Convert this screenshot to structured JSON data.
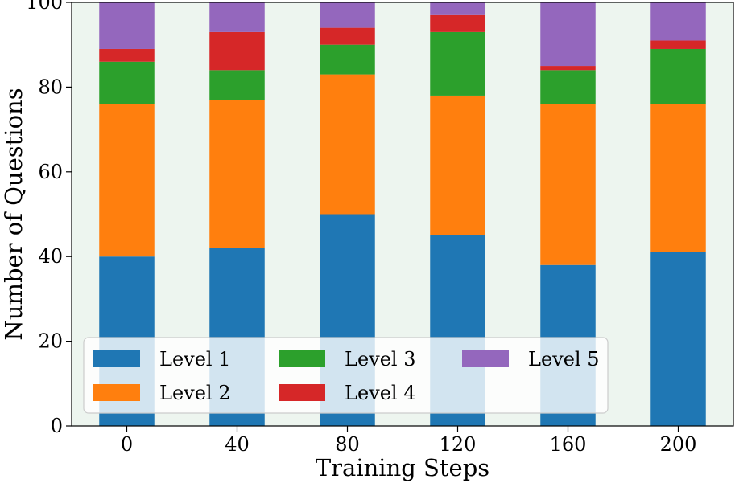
{
  "chart_data": {
    "type": "bar",
    "stacked": true,
    "title": "",
    "xlabel": "Training Steps",
    "ylabel": "Number of Questions",
    "categories": [
      "0",
      "40",
      "80",
      "120",
      "160",
      "200"
    ],
    "ylim": [
      0,
      100
    ],
    "yticks": [
      "0",
      "20",
      "40",
      "60",
      "80",
      "100"
    ],
    "grid": false,
    "legend_position": "bottom-left",
    "background_color": "#edf5ef",
    "series": [
      {
        "name": "Level 1",
        "color": "#1f77b4",
        "values": [
          40,
          42,
          50,
          45,
          38,
          41
        ]
      },
      {
        "name": "Level 2",
        "color": "#ff7f0e",
        "values": [
          36,
          35,
          33,
          33,
          38,
          35
        ]
      },
      {
        "name": "Level 3",
        "color": "#2ca02c",
        "values": [
          10,
          7,
          7,
          15,
          8,
          13
        ]
      },
      {
        "name": "Level 4",
        "color": "#d62728",
        "values": [
          3,
          9,
          4,
          4,
          1,
          2
        ]
      },
      {
        "name": "Level 5",
        "color": "#9467bd",
        "values": [
          11,
          7,
          6,
          3,
          15,
          9
        ]
      }
    ]
  }
}
